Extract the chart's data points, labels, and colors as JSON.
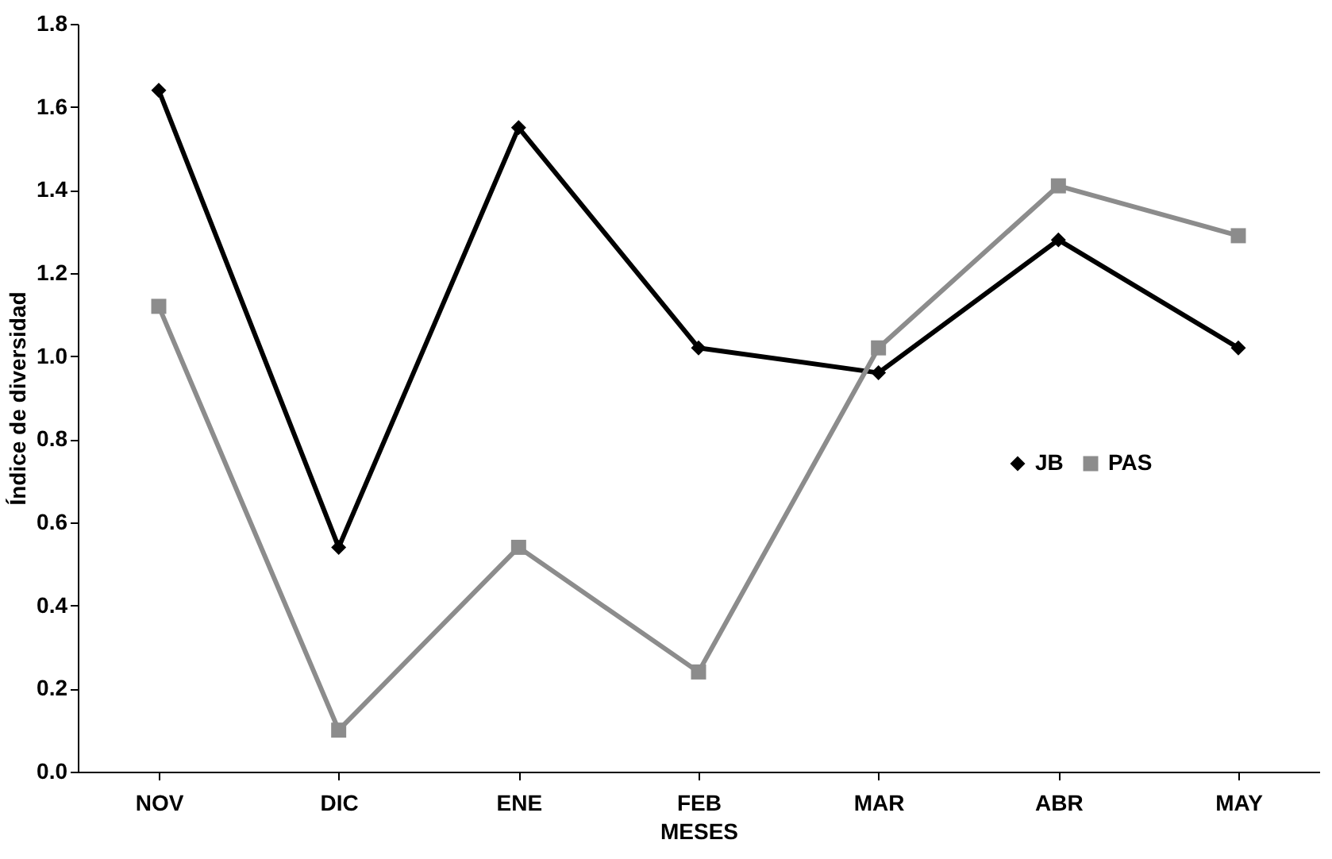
{
  "chart_data": {
    "type": "line",
    "xlabel": "MESES",
    "ylabel": "Índice de diversidad",
    "categories": [
      "NOV",
      "DIC",
      "ENE",
      "FEB",
      "MAR",
      "ABR",
      "MAY"
    ],
    "series": [
      {
        "name": "JB",
        "color": "#000000",
        "marker": "diamond",
        "values": [
          1.64,
          0.54,
          1.55,
          1.02,
          0.96,
          1.28,
          1.02
        ]
      },
      {
        "name": "PAS",
        "color": "#8c8c8c",
        "marker": "square",
        "values": [
          1.12,
          0.1,
          0.54,
          0.24,
          1.02,
          1.41,
          1.29
        ]
      }
    ],
    "ylim": [
      0,
      1.8
    ],
    "yticks": [
      {
        "value": 0,
        "label": "0.0"
      },
      {
        "value": 0.2,
        "label": "0.2"
      },
      {
        "value": 0.4,
        "label": "0.4"
      },
      {
        "value": 0.6,
        "label": "0.6"
      },
      {
        "value": 0.8,
        "label": "0.8"
      },
      {
        "value": 1.0,
        "label": "1.0"
      },
      {
        "value": 1.2,
        "label": "1.2"
      },
      {
        "value": 1.4,
        "label": "1.4"
      },
      {
        "value": 1.6,
        "label": "1.6"
      },
      {
        "value": 1.8,
        "label": "1.8"
      }
    ],
    "grid": false,
    "legend": "right",
    "line_style": "solid"
  }
}
